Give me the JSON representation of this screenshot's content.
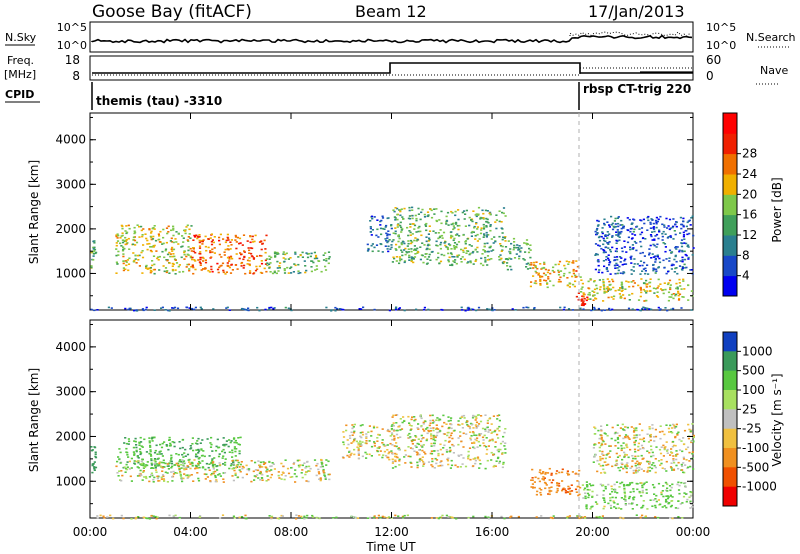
{
  "header": {
    "station": "Goose Bay (fitACF)",
    "beam": "Beam 12",
    "date": "17/Jan/2013"
  },
  "top_panels": {
    "nsky_label": "N.Sky",
    "nsky_ticks": [
      "10^5",
      "10^0"
    ],
    "nsearch_label": "N.Search",
    "nsearch_ticks": [
      "10^5",
      "10^0"
    ],
    "freq_label": "Freq.",
    "freq_unit": "[MHz]",
    "freq_ticks": [
      "18",
      "8"
    ],
    "nave_label": "Nave",
    "nave_ticks": [
      "60",
      "0"
    ],
    "cpid_label": "CPID",
    "cpid_segments": [
      {
        "label": "themis (tau) -3310",
        "start": "00:00",
        "end": "19:20"
      },
      {
        "label": "rbsp CT-trig 220",
        "start": "19:20",
        "end": "24:00"
      }
    ]
  },
  "chart_data": [
    {
      "type": "heatmap",
      "name": "Power",
      "x_unit": "hours UT",
      "xlim": [
        0,
        24
      ],
      "xticks": [
        "00:00",
        "04:00",
        "08:00",
        "12:00",
        "16:00",
        "20:00",
        "00:00"
      ],
      "xtick_values": [
        0,
        4,
        8,
        12,
        16,
        20,
        24
      ],
      "ylabel": "Slant Range [km]",
      "ylim": [
        180,
        4600
      ],
      "yticks": [
        1000,
        2000,
        3000,
        4000
      ],
      "colorbar": {
        "label": "Power [dB]",
        "ticks": [
          "4",
          "8",
          "12",
          "16",
          "20",
          "24",
          "28"
        ],
        "range": [
          0,
          32
        ],
        "colors": [
          "#0000f0",
          "#1848c8",
          "#2a7f8f",
          "#3f9f5a",
          "#7ec84a",
          "#f0b000",
          "#f07000",
          "#f02000",
          "#ff0000"
        ]
      },
      "regions": [
        {
          "t0": 0.0,
          "t1": 0.2,
          "r0": 1100,
          "r1": 1800,
          "power": 14
        },
        {
          "t0": 1.0,
          "t1": 4.0,
          "r0": 1000,
          "r1": 2100,
          "power": 18
        },
        {
          "t0": 4.0,
          "t1": 7.0,
          "r0": 1000,
          "r1": 1900,
          "power": 24
        },
        {
          "t0": 7.0,
          "t1": 9.5,
          "r0": 1000,
          "r1": 1500,
          "power": 14
        },
        {
          "t0": 11.0,
          "t1": 12.0,
          "r0": 1500,
          "r1": 2300,
          "power": 8
        },
        {
          "t0": 12.0,
          "t1": 16.5,
          "r0": 1200,
          "r1": 2500,
          "power": 14
        },
        {
          "t0": 16.5,
          "t1": 17.5,
          "r0": 1100,
          "r1": 1800,
          "power": 12
        },
        {
          "t0": 17.5,
          "t1": 19.5,
          "r0": 700,
          "r1": 1300,
          "power": 20
        },
        {
          "t0": 19.3,
          "t1": 19.8,
          "r0": 300,
          "r1": 600,
          "power": 30
        },
        {
          "t0": 19.5,
          "t1": 24.0,
          "r0": 400,
          "r1": 900,
          "power": 18
        },
        {
          "t0": 20.0,
          "t1": 24.0,
          "r0": 1000,
          "r1": 2300,
          "power": 6
        },
        {
          "t0": 0.0,
          "t1": 24.0,
          "r0": 180,
          "r1": 260,
          "power": 6
        }
      ]
    },
    {
      "type": "heatmap",
      "name": "Velocity",
      "x_unit": "hours UT",
      "xlim": [
        0,
        24
      ],
      "xticks": [
        "00:00",
        "04:00",
        "08:00",
        "12:00",
        "16:00",
        "20:00",
        "00:00"
      ],
      "xtick_values": [
        0,
        4,
        8,
        12,
        16,
        20,
        24
      ],
      "xlabel": "Time UT",
      "ylabel": "Slant Range [km]",
      "ylim": [
        180,
        4600
      ],
      "yticks": [
        1000,
        2000,
        3000,
        4000
      ],
      "colorbar": {
        "label": "Velocity [m s⁻¹]",
        "ticks": [
          "1000",
          "500",
          "100",
          "25",
          "-25",
          "-100",
          "-500",
          "-1000"
        ],
        "colors": [
          "#1040c0",
          "#3a9a5a",
          "#58c840",
          "#a8e060",
          "#c0c0c0",
          "#f0c040",
          "#f09020",
          "#f05000",
          "#f00000"
        ]
      },
      "regions": [
        {
          "t0": 0.0,
          "t1": 0.2,
          "r0": 1200,
          "r1": 1800,
          "velocity": 500
        },
        {
          "t0": 1.0,
          "t1": 6.0,
          "r0": 1300,
          "r1": 2000,
          "velocity": 200
        },
        {
          "t0": 1.0,
          "t1": 9.5,
          "r0": 1000,
          "r1": 1500,
          "velocity": 0
        },
        {
          "t0": 10.0,
          "t1": 12.0,
          "r0": 1500,
          "r1": 2300,
          "velocity": 0
        },
        {
          "t0": 12.0,
          "t1": 16.5,
          "r0": 1300,
          "r1": 2500,
          "velocity": 0
        },
        {
          "t0": 17.5,
          "t1": 19.5,
          "r0": 700,
          "r1": 1300,
          "velocity": -200
        },
        {
          "t0": 19.5,
          "t1": 24.0,
          "r0": 400,
          "r1": 1000,
          "velocity": 100
        },
        {
          "t0": 20.0,
          "t1": 24.0,
          "r0": 1200,
          "r1": 2300,
          "velocity": 0
        },
        {
          "t0": 0.0,
          "t1": 24.0,
          "r0": 180,
          "r1": 260,
          "velocity": 0
        }
      ]
    }
  ]
}
